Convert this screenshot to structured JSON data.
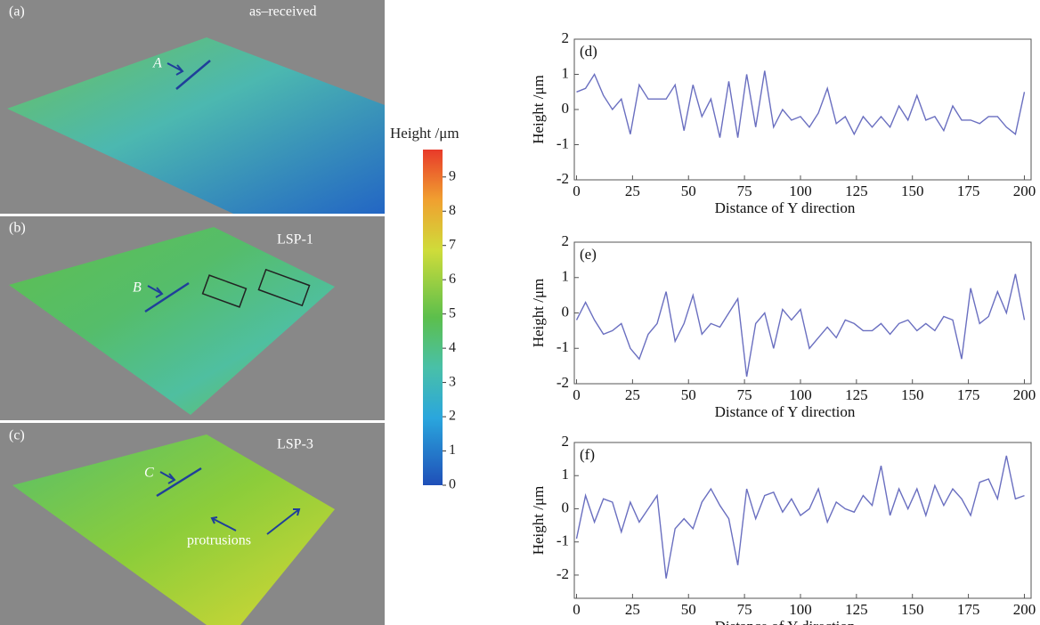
{
  "surface_panels": [
    {
      "label": "(a)",
      "name": "as–received",
      "marker": "A"
    },
    {
      "label": "(b)",
      "name": "LSP-1",
      "marker": "B"
    },
    {
      "label": "(c)",
      "name": "LSP-3",
      "marker": "C"
    }
  ],
  "annotation": "protrusions",
  "colorbar": {
    "label": "Height /μm",
    "lim": [
      0,
      9.8
    ],
    "ticks": [
      0,
      1,
      2,
      3,
      4,
      5,
      6,
      7,
      8,
      9
    ]
  },
  "chart_data": [
    {
      "type": "line",
      "panel_label": "(d)",
      "x_label": "Distance of Y direction",
      "y_label": "Height /μm",
      "xlim": [
        -1,
        203
      ],
      "ylim": [
        -2,
        2
      ],
      "xticks": [
        0,
        25,
        50,
        75,
        100,
        125,
        150,
        175,
        200
      ],
      "yticks": [
        -2,
        -1,
        0,
        1,
        2
      ],
      "series": [
        {
          "color": "#6a6fc0",
          "x": [
            0,
            4,
            8,
            12,
            16,
            20,
            24,
            28,
            32,
            36,
            40,
            44,
            48,
            52,
            56,
            60,
            64,
            68,
            72,
            76,
            80,
            84,
            88,
            92,
            96,
            100,
            104,
            108,
            112,
            116,
            120,
            124,
            128,
            132,
            136,
            140,
            144,
            148,
            152,
            156,
            160,
            164,
            168,
            172,
            176,
            180,
            184,
            188,
            192,
            196,
            200
          ],
          "values": [
            0.5,
            0.6,
            1.0,
            0.4,
            0.0,
            0.3,
            -0.7,
            0.7,
            0.3,
            0.3,
            0.3,
            0.7,
            -0.6,
            0.7,
            -0.2,
            0.3,
            -0.8,
            0.8,
            -0.8,
            1.0,
            -0.5,
            1.1,
            -0.5,
            0.0,
            -0.3,
            -0.2,
            -0.5,
            -0.1,
            0.6,
            -0.4,
            -0.2,
            -0.7,
            -0.2,
            -0.5,
            -0.2,
            -0.5,
            0.1,
            -0.3,
            0.4,
            -0.3,
            -0.2,
            -0.6,
            0.1,
            -0.3,
            -0.3,
            -0.4,
            -0.2,
            -0.2,
            -0.5,
            -0.7,
            0.5
          ]
        }
      ]
    },
    {
      "type": "line",
      "panel_label": "(e)",
      "x_label": "Distance of Y direction",
      "y_label": "Height /μm",
      "xlim": [
        -1,
        203
      ],
      "ylim": [
        -2,
        2
      ],
      "xticks": [
        0,
        25,
        50,
        75,
        100,
        125,
        150,
        175,
        200
      ],
      "yticks": [
        -2,
        -1,
        0,
        1,
        2
      ],
      "series": [
        {
          "color": "#6a6fc0",
          "x": [
            0,
            4,
            8,
            12,
            16,
            20,
            24,
            28,
            32,
            36,
            40,
            44,
            48,
            52,
            56,
            60,
            64,
            68,
            72,
            76,
            80,
            84,
            88,
            92,
            96,
            100,
            104,
            108,
            112,
            116,
            120,
            124,
            128,
            132,
            136,
            140,
            144,
            148,
            152,
            156,
            160,
            164,
            168,
            172,
            176,
            180,
            184,
            188,
            192,
            196,
            200
          ],
          "values": [
            -0.2,
            0.3,
            -0.2,
            -0.6,
            -0.5,
            -0.3,
            -1.0,
            -1.3,
            -0.6,
            -0.3,
            0.6,
            -0.8,
            -0.3,
            0.5,
            -0.6,
            -0.3,
            -0.4,
            0.0,
            0.4,
            -1.8,
            -0.3,
            0.0,
            -1.0,
            0.1,
            -0.2,
            0.1,
            -1.0,
            -0.7,
            -0.4,
            -0.7,
            -0.2,
            -0.3,
            -0.5,
            -0.5,
            -0.3,
            -0.6,
            -0.3,
            -0.2,
            -0.5,
            -0.3,
            -0.5,
            -0.1,
            -0.2,
            -1.3,
            0.7,
            -0.3,
            -0.1,
            0.6,
            0.0,
            1.1,
            -0.2
          ]
        }
      ]
    },
    {
      "type": "line",
      "panel_label": "(f)",
      "x_label": "Distance of Y direction",
      "y_label": "Height /μm",
      "xlim": [
        -1,
        203
      ],
      "ylim": [
        -2.7,
        2
      ],
      "xticks": [
        0,
        25,
        50,
        75,
        100,
        125,
        150,
        175,
        200
      ],
      "yticks": [
        -2,
        -1,
        0,
        1,
        2
      ],
      "series": [
        {
          "color": "#6a6fc0",
          "x": [
            0,
            4,
            8,
            12,
            16,
            20,
            24,
            28,
            32,
            36,
            40,
            44,
            48,
            52,
            56,
            60,
            64,
            68,
            72,
            76,
            80,
            84,
            88,
            92,
            96,
            100,
            104,
            108,
            112,
            116,
            120,
            124,
            128,
            132,
            136,
            140,
            144,
            148,
            152,
            156,
            160,
            164,
            168,
            172,
            176,
            180,
            184,
            188,
            192,
            196,
            200
          ],
          "values": [
            -0.9,
            0.4,
            -0.4,
            0.3,
            0.2,
            -0.7,
            0.2,
            -0.4,
            0.0,
            0.4,
            -2.1,
            -0.6,
            -0.3,
            -0.6,
            0.2,
            0.6,
            0.1,
            -0.3,
            -1.7,
            0.6,
            -0.3,
            0.4,
            0.5,
            -0.1,
            0.3,
            -0.2,
            0.0,
            0.6,
            -0.4,
            0.2,
            0.0,
            -0.1,
            0.4,
            0.1,
            1.3,
            -0.2,
            0.6,
            0.0,
            0.6,
            -0.2,
            0.7,
            0.1,
            0.6,
            0.3,
            -0.2,
            0.8,
            0.9,
            0.3,
            1.6,
            0.3,
            0.4
          ]
        }
      ]
    }
  ]
}
